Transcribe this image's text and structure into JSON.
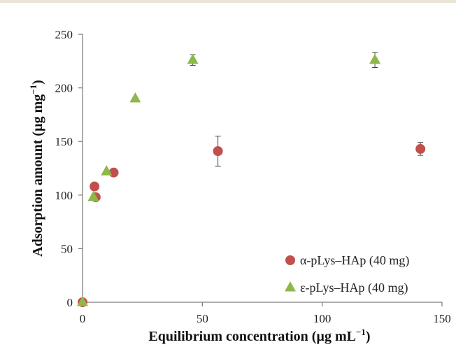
{
  "chart_data": {
    "type": "scatter",
    "xlabel": {
      "main": "Equilibrium concentration (µg mL",
      "sup": "−1",
      "close": ")"
    },
    "ylabel": {
      "main": "Adsorption amount (µg mg",
      "sup": "−1",
      "close": ")"
    },
    "xlim": [
      0,
      150
    ],
    "ylim": [
      0,
      250
    ],
    "xticks": [
      0,
      50,
      100,
      150
    ],
    "yticks": [
      0,
      50,
      100,
      150,
      200,
      250
    ],
    "grid": false,
    "legend_position": "bottom-right",
    "series": [
      {
        "name": "α-pLys–HAp (40 mg)",
        "marker": "circle",
        "color": "#c0504d",
        "points": [
          {
            "x": 0,
            "y": 0,
            "err": 0
          },
          {
            "x": 5,
            "y": 108,
            "err": 0
          },
          {
            "x": 5.5,
            "y": 98,
            "err": 0
          },
          {
            "x": 13,
            "y": 121,
            "err": 0
          },
          {
            "x": 56.5,
            "y": 141,
            "err": 14
          },
          {
            "x": 141,
            "y": 143,
            "err": 6
          }
        ]
      },
      {
        "name": "ε-pLys–HAp (40 mg)",
        "marker": "triangle",
        "color": "#8db84a",
        "points": [
          {
            "x": 0,
            "y": 0,
            "err": 0
          },
          {
            "x": 4.5,
            "y": 98,
            "err": 0
          },
          {
            "x": 10,
            "y": 122,
            "err": 0
          },
          {
            "x": 22,
            "y": 190,
            "err": 0
          },
          {
            "x": 46,
            "y": 226,
            "err": 5
          },
          {
            "x": 122,
            "y": 226,
            "err": 7
          }
        ]
      }
    ]
  }
}
